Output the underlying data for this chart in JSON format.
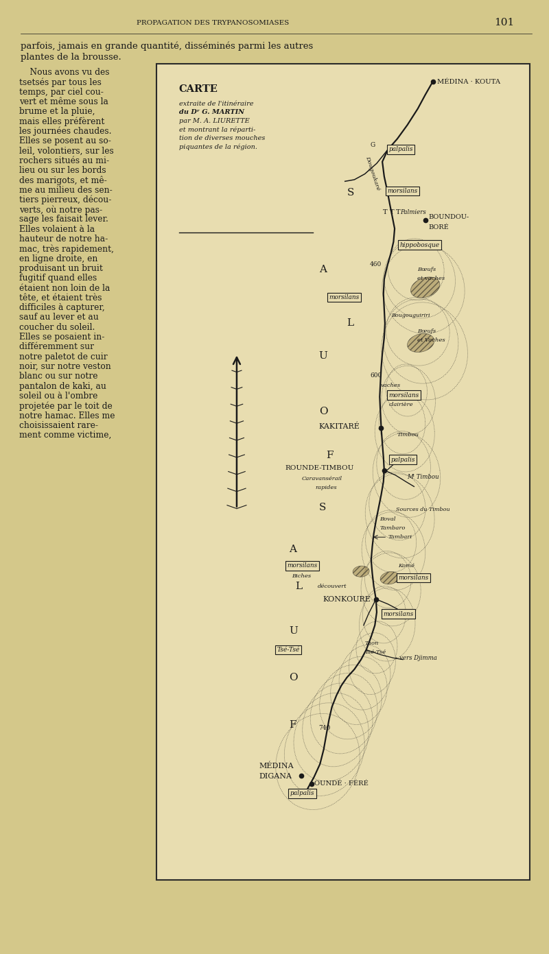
{
  "page_bg": "#d4c88a",
  "page_width": 8.0,
  "page_height": 13.91,
  "header_text": "PROPAGATION DES TRYPANOSOMIASES",
  "page_number": "101",
  "map_bg": "#e8ddb0",
  "map_border": "#2a2a2a",
  "text_color": "#1a1a1a",
  "left_col_lines": [
    "    Nous avons vu des",
    "tsetsés par tous les",
    "temps, par ciel cou-",
    "vert et même sous la",
    "brume et la pluie,",
    "mais elles préfèrent",
    "les journées chaudes.",
    "Elles se posent au so-",
    "leil, volontiers, sur les",
    "rochers situés au mi-",
    "lieu ou sur les bords",
    "des marigots, et mê-",
    "me au milieu des sen-",
    "tiers pierreux, décou-",
    "verts, où notre pas-",
    "sage les faisait lever.",
    "Elles volaient à la",
    "hauteur de notre ha-",
    "mac, très rapidement,",
    "en ligne droite, en",
    "produisant un bruit",
    "fugitif quand elles",
    "étaient non loin de la",
    "tête, et étaient très",
    "difficiles à capturer,",
    "sauf au lever et au",
    "coucher du soleil.",
    "Elles se posaient in-",
    "différemment sur",
    "notre paletot de cuir",
    "noir, sur notre veston",
    "blanc ou sur notre",
    "pantalon de kaki, au",
    "soleil ou à l'ombre",
    "projetée par le toit de",
    "notre hamac. Elles me",
    "choisissaient rare-",
    "ment comme victime,"
  ]
}
